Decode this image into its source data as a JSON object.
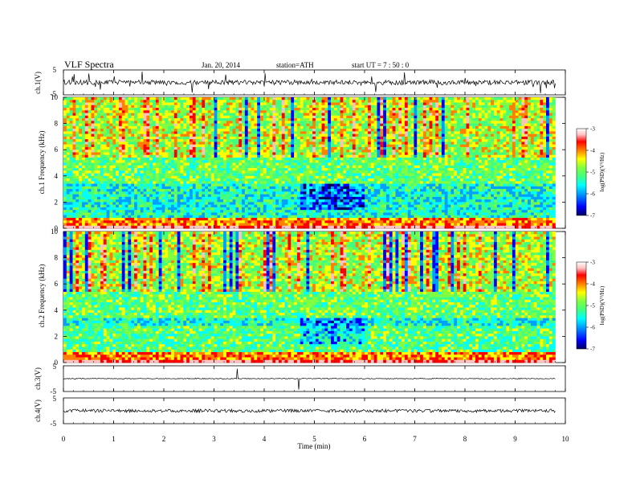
{
  "header": {
    "title": "VLF Spectra",
    "date": "Jan. 20, 2014",
    "station": "station=ATH",
    "start": "start  UT  =   7 : 50 : 0"
  },
  "chart_data": [
    {
      "type": "line",
      "name": "ch1-waveform",
      "ylabel": "ch.1(V)",
      "ylim": [
        -5,
        5
      ],
      "yticks": [
        "5",
        "-5"
      ],
      "xlim": [
        0,
        10
      ],
      "grid": false
    },
    {
      "type": "heatmap",
      "name": "ch1-spectrogram",
      "ylabel": "ch.1 Frequency (kHz)",
      "ylim": [
        0,
        10
      ],
      "yticks": [
        "0",
        "2",
        "4",
        "6",
        "8",
        "10"
      ],
      "xlim": [
        0,
        10
      ],
      "data_end_min": 9.8,
      "colorbar": {
        "label": "log(PSD)(V²/Hz)",
        "range": [
          -7,
          -3
        ],
        "ticks": [
          "-3",
          "-4",
          "-5",
          "-6",
          "-7"
        ]
      }
    },
    {
      "type": "heatmap",
      "name": "ch2-spectrogram",
      "ylabel": "ch.2 Frequency (kHz)",
      "ylim": [
        0,
        10
      ],
      "yticks": [
        "0",
        "2",
        "4",
        "6",
        "8",
        "10"
      ],
      "xlim": [
        0,
        10
      ],
      "data_end_min": 9.8,
      "colorbar": {
        "label": "log(PSD)(V²/Hz)",
        "range": [
          -7,
          -3
        ],
        "ticks": [
          "-3",
          "-4",
          "-5",
          "-6",
          "-7"
        ]
      }
    },
    {
      "type": "line",
      "name": "ch3-waveform",
      "ylabel": "ch.3(V)",
      "ylim": [
        -5,
        5
      ],
      "yticks": [
        "5",
        "-5"
      ],
      "xlim": [
        0,
        10
      ]
    },
    {
      "type": "line",
      "name": "ch4-waveform",
      "ylabel": "ch.4(V)",
      "ylim": [
        -5,
        5
      ],
      "yticks": [
        "5",
        "-5"
      ],
      "xlim": [
        0,
        10
      ],
      "xlabel": "Time  (min)",
      "xticks": [
        "0",
        "1",
        "2",
        "3",
        "4",
        "5",
        "6",
        "7",
        "8",
        "9",
        "10"
      ]
    }
  ],
  "colors": {
    "colormap": [
      "#000060",
      "#0000ff",
      "#00a0ff",
      "#00ffff",
      "#40ff80",
      "#80ff40",
      "#ffff00",
      "#ff8000",
      "#ff0000",
      "#ffc0c0",
      "#ffffff"
    ]
  }
}
